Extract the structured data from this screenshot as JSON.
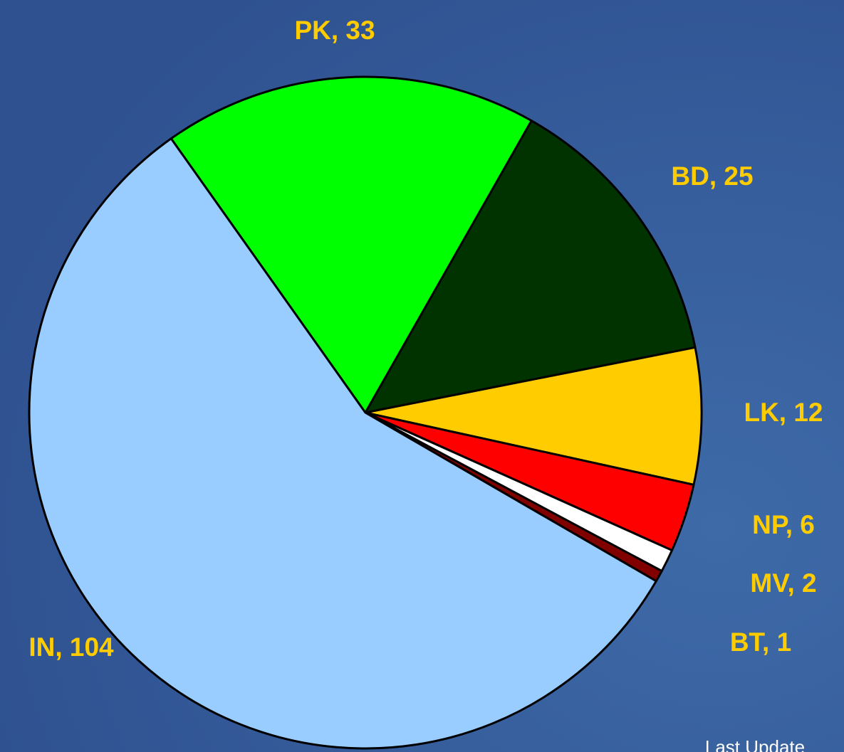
{
  "chart_data": {
    "type": "pie",
    "categories": [
      "PK",
      "BD",
      "LK",
      "NP",
      "MV",
      "BT",
      "IN"
    ],
    "values": [
      33,
      25,
      12,
      6,
      2,
      1,
      104
    ],
    "value_labels": [
      "PK, 33",
      "BD, 25",
      "LK, 12",
      "NP, 6",
      "MV, 2",
      "BT, 1",
      "IN, 104"
    ],
    "colors": [
      "#00ff00",
      "#003300",
      "#ffcc00",
      "#ff0000",
      "#ffffff",
      "#800000",
      "#99ccff"
    ],
    "annotation": "Last Update"
  }
}
